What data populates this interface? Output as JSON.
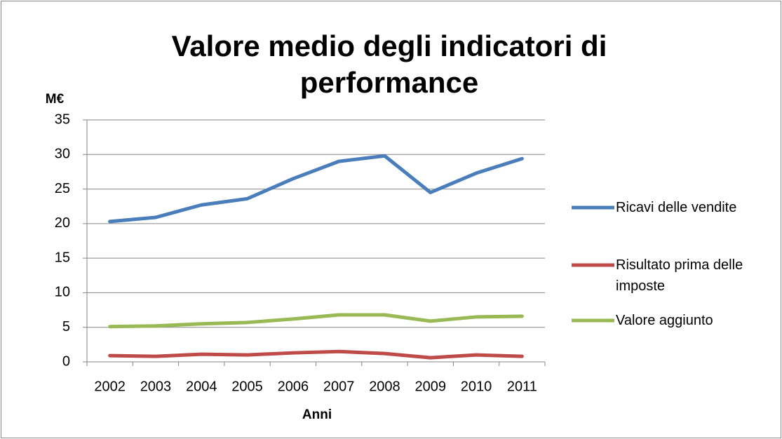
{
  "chart_data": {
    "type": "line",
    "title": "Valore medio degli indicatori di performance",
    "y_label": "M€",
    "x_label": "Anni",
    "categories": [
      "2002",
      "2003",
      "2004",
      "2005",
      "2006",
      "2007",
      "2008",
      "2009",
      "2010",
      "2011"
    ],
    "series": [
      {
        "name": "Ricavi delle vendite",
        "color": "#4a7ebb",
        "values": [
          20.3,
          20.9,
          22.7,
          23.6,
          26.5,
          29.0,
          29.8,
          24.5,
          27.3,
          29.4
        ]
      },
      {
        "name": "Risultato prima delle imposte",
        "color": "#be4b48",
        "values": [
          0.9,
          0.8,
          1.1,
          1.0,
          1.3,
          1.5,
          1.2,
          0.6,
          1.0,
          0.8
        ]
      },
      {
        "name": "Valore aggiunto",
        "color": "#98b954",
        "values": [
          5.1,
          5.2,
          5.5,
          5.7,
          6.2,
          6.8,
          6.8,
          5.9,
          6.5,
          6.6
        ]
      }
    ],
    "ylim": [
      0,
      35
    ],
    "yticks": [
      0,
      5,
      10,
      15,
      20,
      25,
      30,
      35
    ],
    "grid": true,
    "legend": "right"
  }
}
